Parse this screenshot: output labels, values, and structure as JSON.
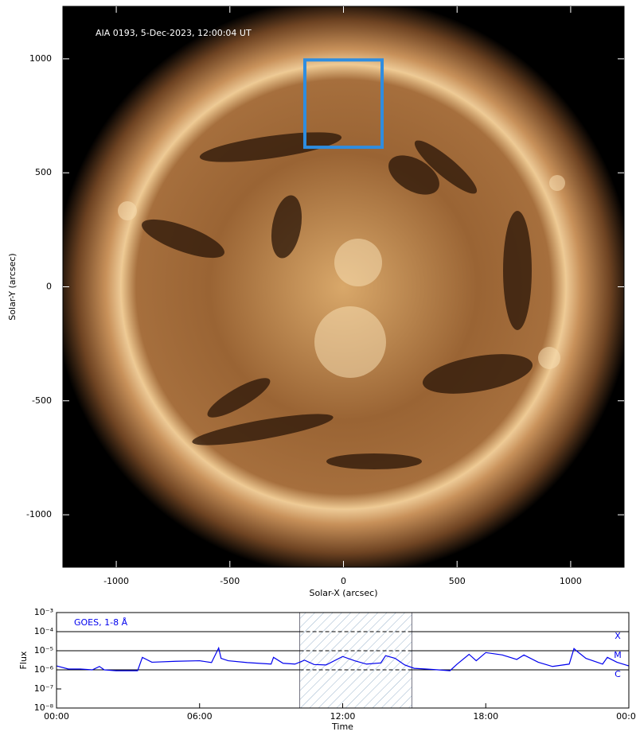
{
  "chart_data": [
    {
      "type": "image",
      "annotation": "AIA 0193, 5-Dec-2023, 12:00:04 UT",
      "x_label": "Solar-X (arcsec)",
      "y_label": "Solar-Y (arcsec)",
      "xlim": [
        -1235,
        1235
      ],
      "ylim": [
        -1230,
        1230
      ],
      "xticks": [
        -1000,
        -500,
        0,
        500,
        1000
      ],
      "yticks": [
        -1000,
        -500,
        0,
        500,
        1000
      ],
      "box": {
        "x": [
          -170,
          170
        ],
        "y": [
          612,
          995
        ],
        "color": "#2e8de0"
      }
    },
    {
      "type": "line",
      "annotation": "GOES, 1-8 Å",
      "x_label": "Time",
      "y_label": "Flux",
      "log_y": true,
      "xlim": [
        0,
        24
      ],
      "ylim": [
        1e-08,
        0.001
      ],
      "xticks": [
        {
          "value": 0,
          "label": "00:00"
        },
        {
          "value": 6,
          "label": "06:00"
        },
        {
          "value": 12,
          "label": "12:00"
        },
        {
          "value": 18,
          "label": "18:00"
        },
        {
          "value": 24,
          "label": "00:00"
        }
      ],
      "yticks": [
        {
          "value": 1e-08,
          "label": "10⁻⁸"
        },
        {
          "value": 1e-07,
          "label": "10⁻⁷"
        },
        {
          "value": 1e-06,
          "label": "10⁻⁶"
        },
        {
          "value": 1e-05,
          "label": "10⁻⁵"
        },
        {
          "value": 0.0001,
          "label": "10⁻⁴"
        },
        {
          "value": 0.001,
          "label": "10⁻³"
        }
      ],
      "flare_classes": [
        {
          "label": "X",
          "value": 0.0001
        },
        {
          "label": "M",
          "value": 1e-05
        },
        {
          "label": "C",
          "value": 1e-06
        }
      ],
      "highlight": [
        10.2,
        14.9
      ],
      "series": [
        {
          "name": "GOES, 1-8 Å",
          "color": "#0000ee",
          "x": [
            0,
            0.5,
            1,
            1.5,
            1.8,
            2,
            2.5,
            3,
            3.4,
            3.6,
            4,
            5,
            6,
            6.5,
            6.8,
            6.9,
            7.2,
            8,
            9,
            9.1,
            9.5,
            10,
            10.4,
            10.8,
            11.3,
            12,
            12.5,
            13,
            13.6,
            13.8,
            14.2,
            14.6,
            15,
            15.5,
            16,
            16.5,
            16.8,
            17.3,
            17.6,
            18,
            18.7,
            19.3,
            19.6,
            20.2,
            20.8,
            21.5,
            21.7,
            21.8,
            22.2,
            22.9,
            23.1,
            23.5,
            24
          ],
          "values": [
            1.6e-06,
            1.1e-06,
            1.1e-06,
            1e-06,
            1.5e-06,
            1e-06,
            9e-07,
            9e-07,
            9e-07,
            4.5e-06,
            2.5e-06,
            2.8e-06,
            3e-06,
            2.4e-06,
            1.4e-05,
            4e-06,
            3e-06,
            2.4e-06,
            2e-06,
            4.5e-06,
            2.2e-06,
            2e-06,
            3.2e-06,
            1.9e-06,
            1.8e-06,
            5e-06,
            3e-06,
            2e-06,
            2.3e-06,
            5.5e-06,
            4e-06,
            1.8e-06,
            1.2e-06,
            1.1e-06,
            1e-06,
            9e-07,
            2e-06,
            6.5e-06,
            3e-06,
            8e-06,
            6e-06,
            3.5e-06,
            6e-06,
            2.5e-06,
            1.5e-06,
            2e-06,
            1.3e-05,
            1e-05,
            4e-06,
            2e-06,
            4.5e-06,
            2.5e-06,
            1.6e-06
          ]
        }
      ]
    }
  ]
}
